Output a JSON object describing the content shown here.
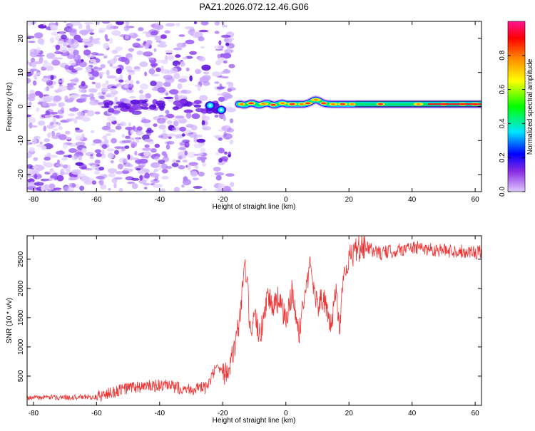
{
  "title": "PAZ1.2026.072.12.46.G06",
  "colors": {
    "snr_line": "#ee3333",
    "noise_purple": "#8a2be2",
    "background": "#ffffff",
    "axis": "#000000"
  },
  "chart_data": [
    {
      "type": "heatmap",
      "title": "PAZ1.2026.072.12.46.G06",
      "xlabel": "Height of straight line (km)",
      "ylabel": "Frequency (Hz)",
      "xlim": [
        -82,
        62
      ],
      "ylim": [
        -25,
        25
      ],
      "xticks": [
        -80,
        -60,
        -40,
        -20,
        0,
        20,
        40,
        60
      ],
      "yticks": [
        -20,
        -10,
        0,
        10,
        20
      ],
      "colorbar": {
        "label": "Normalized spectral amplitude",
        "range": [
          0,
          1
        ],
        "ticks": [
          0.0,
          0.2,
          0.4,
          0.6,
          0.8
        ],
        "tick_labels": [
          "0.0",
          "0.2",
          "0.4",
          "0.6",
          "0.8"
        ],
        "colormap": [
          "#e0c8ff",
          "#8a2be2",
          "#0000ff",
          "#00e5ff",
          "#00ff00",
          "#ffff00",
          "#ff8c00",
          "#ff0000",
          "#ff1493"
        ]
      },
      "features": [
        {
          "name": "noise",
          "x_range": [
            -82,
            -25
          ],
          "y_range": [
            -25,
            25
          ],
          "amplitude": 0.08
        },
        {
          "name": "noise",
          "x_range": [
            -22,
            -17
          ],
          "y_range": [
            -25,
            25
          ],
          "amplitude": 0.08
        },
        {
          "name": "signal",
          "x_range": [
            -15,
            62
          ],
          "frequency": 0.7,
          "amplitude": 0.9
        }
      ]
    },
    {
      "type": "line",
      "title": "",
      "xlabel": "Height of straight line (km)",
      "ylabel": "SNR (10 * v/v)",
      "xlim": [
        -82,
        62
      ],
      "ylim": [
        0,
        2900
      ],
      "xticks": [
        -80,
        -60,
        -40,
        -20,
        0,
        20,
        40,
        60
      ],
      "yticks": [
        500,
        1000,
        1500,
        2000,
        2500
      ],
      "series": [
        {
          "name": "SNR",
          "x": [
            -82,
            -70,
            -60,
            -50,
            -40,
            -30,
            -25,
            -22,
            -20,
            -17,
            -15,
            -13,
            -12,
            -11,
            -10,
            -8,
            -6,
            -4,
            -2,
            0,
            2,
            4,
            6,
            8,
            9,
            10,
            12,
            14,
            16,
            17,
            18,
            20,
            22,
            25,
            30,
            40,
            50,
            62
          ],
          "values": [
            130,
            140,
            140,
            300,
            340,
            280,
            300,
            650,
            500,
            820,
            1350,
            2350,
            1900,
            1000,
            1500,
            1200,
            1900,
            1700,
            1850,
            1400,
            1950,
            1200,
            1900,
            2450,
            2000,
            1700,
            1850,
            1300,
            2000,
            1200,
            2200,
            2500,
            2650,
            2700,
            2600,
            2700,
            2650,
            2620
          ]
        }
      ]
    }
  ]
}
